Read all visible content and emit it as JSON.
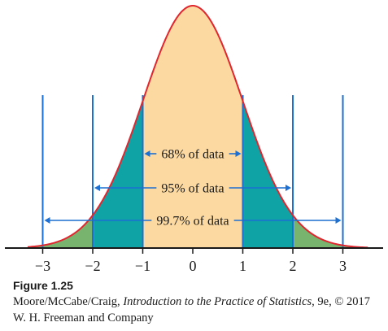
{
  "chart_data": {
    "type": "area",
    "distribution": "standard normal density curve",
    "x_ticks": [
      -3,
      -2,
      -1,
      0,
      1,
      2,
      3
    ],
    "x_tick_labels": [
      "−3",
      "−2",
      "−1",
      "0",
      "1",
      "2",
      "3"
    ],
    "xlim": [
      -3.3,
      3.5
    ],
    "regions": [
      {
        "from": -1,
        "to": 1,
        "color": "#fcd9a0"
      },
      {
        "from": -2,
        "to": -1,
        "color": "#0fa3a6"
      },
      {
        "from": 1,
        "to": 2,
        "color": "#0fa3a6"
      },
      {
        "from": -3.3,
        "to": -2,
        "color": "#79b46f"
      },
      {
        "from": 2,
        "to": 3.5,
        "color": "#79b46f"
      }
    ],
    "ranges": [
      {
        "from": -1,
        "to": 1,
        "label": "68% of data"
      },
      {
        "from": -2,
        "to": 2,
        "label": "95% of data"
      },
      {
        "from": -3,
        "to": 3,
        "label": "99.7% of data"
      }
    ],
    "vertical_lines_at": [
      -3,
      -2,
      -1,
      1,
      2,
      3
    ],
    "curve_color": "#e0262f",
    "line_color": "#1d6fd1",
    "axis_color": "#1a1a1a",
    "grid": false,
    "legend": "none"
  },
  "caption": {
    "figure_label": "Figure 1.25",
    "credit_prefix": "Moore/McCabe/Craig, ",
    "credit_title": "Introduction to the Practice of Statistics",
    "credit_suffix": ", 9e, © 2017 W. H. Freeman and Company"
  }
}
